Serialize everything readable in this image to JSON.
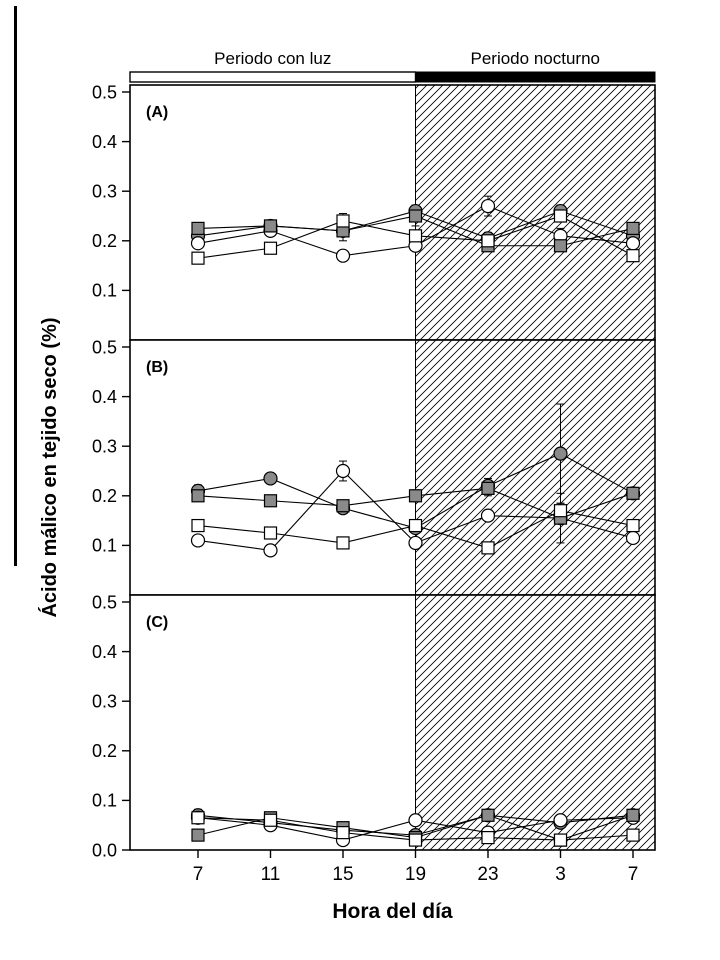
{
  "figure": {
    "light_period_label": "Periodo con luz",
    "night_period_label": "Periodo nocturno",
    "x_axis_label": "Hora del día",
    "y_axis_label": "Ácido málico en tejido seco (%)"
  },
  "chart_data": {
    "type": "line",
    "title": "",
    "xlabel": "Hora del día",
    "ylabel": "Ácido málico en tejido seco (%)",
    "x_tick_labels": [
      "7",
      "11",
      "15",
      "19",
      "23",
      "3",
      "7"
    ],
    "night_start_tick_index": 3,
    "period_labels": {
      "light": "Periodo con luz",
      "night": "Periodo nocturno"
    },
    "y_ticks": [
      0.0,
      0.1,
      0.2,
      0.3,
      0.4,
      0.5
    ],
    "ylim": [
      0,
      0.514
    ],
    "grid": false,
    "legend": "none",
    "colors": {
      "marker_gray": "#8a8a8a",
      "marker_white": "#ffffff",
      "line": "#000000",
      "night_bar": "#000000"
    },
    "panels": [
      {
        "label": "(A)",
        "series": [
          {
            "name": "filled-circle",
            "marker": "circle",
            "fill": "gray",
            "values": [
              0.21,
              0.23,
              0.22,
              0.26,
              0.205,
              0.26,
              0.21
            ],
            "errors": [
              0.012,
              0.008,
              0.01,
              0.012,
              0.012,
              0.012,
              0.008
            ]
          },
          {
            "name": "open-circle",
            "marker": "circle",
            "fill": "white",
            "values": [
              0.195,
              0.22,
              0.17,
              0.19,
              0.27,
              0.21,
              0.195
            ],
            "errors": [
              0.01,
              0.008,
              0.008,
              0.008,
              0.02,
              0.015,
              0.008
            ]
          },
          {
            "name": "filled-square",
            "marker": "square",
            "fill": "gray",
            "values": [
              0.225,
              0.23,
              0.22,
              0.25,
              0.19,
              0.19,
              0.225
            ],
            "errors": [
              0.008,
              0.008,
              0.02,
              0.01,
              0.008,
              0.008,
              0.008
            ]
          },
          {
            "name": "open-square",
            "marker": "square",
            "fill": "white",
            "values": [
              0.165,
              0.185,
              0.24,
              0.21,
              0.2,
              0.25,
              0.17
            ],
            "errors": [
              0.008,
              0.008,
              0.015,
              0.02,
              0.012,
              0.01,
              0.008
            ]
          }
        ]
      },
      {
        "label": "(B)",
        "series": [
          {
            "name": "filled-circle",
            "marker": "circle",
            "fill": "gray",
            "values": [
              0.21,
              0.235,
              0.175,
              0.135,
              0.22,
              0.285,
              0.205
            ],
            "errors": [
              0.012,
              0.008,
              0.01,
              0.01,
              0.015,
              0.1,
              0.01
            ]
          },
          {
            "name": "open-circle",
            "marker": "circle",
            "fill": "white",
            "values": [
              0.11,
              0.09,
              0.25,
              0.105,
              0.16,
              0.155,
              0.115
            ],
            "errors": [
              0.008,
              0.008,
              0.02,
              0.008,
              0.01,
              0.012,
              0.008
            ]
          },
          {
            "name": "filled-square",
            "marker": "square",
            "fill": "gray",
            "values": [
              0.2,
              0.19,
              0.18,
              0.2,
              0.215,
              0.155,
              0.205
            ],
            "errors": [
              0.01,
              0.008,
              0.01,
              0.012,
              0.015,
              0.05,
              0.01
            ]
          },
          {
            "name": "open-square",
            "marker": "square",
            "fill": "white",
            "values": [
              0.14,
              0.125,
              0.105,
              0.14,
              0.095,
              0.17,
              0.14
            ],
            "errors": [
              0.008,
              0.008,
              0.008,
              0.01,
              0.008,
              0.015,
              0.008
            ]
          }
        ]
      },
      {
        "label": "(C)",
        "series": [
          {
            "name": "filled-circle",
            "marker": "circle",
            "fill": "gray",
            "values": [
              0.07,
              0.055,
              0.04,
              0.03,
              0.07,
              0.055,
              0.07
            ],
            "errors": [
              0.012,
              0.008,
              0.008,
              0.005,
              0.008,
              0.008,
              0.01
            ]
          },
          {
            "name": "open-circle",
            "marker": "circle",
            "fill": "white",
            "values": [
              0.065,
              0.05,
              0.02,
              0.06,
              0.035,
              0.06,
              0.065
            ],
            "errors": [
              0.008,
              0.006,
              0.005,
              0.01,
              0.006,
              0.008,
              0.008
            ]
          },
          {
            "name": "filled-square",
            "marker": "square",
            "fill": "gray",
            "values": [
              0.03,
              0.065,
              0.045,
              0.025,
              0.07,
              0.02,
              0.07
            ],
            "errors": [
              0.005,
              0.008,
              0.006,
              0.005,
              0.008,
              0.005,
              0.008
            ]
          },
          {
            "name": "open-square",
            "marker": "square",
            "fill": "white",
            "values": [
              0.065,
              0.06,
              0.035,
              0.02,
              0.025,
              0.02,
              0.03
            ],
            "errors": [
              0.008,
              0.006,
              0.005,
              0.005,
              0.005,
              0.005,
              0.005
            ]
          }
        ]
      }
    ]
  }
}
